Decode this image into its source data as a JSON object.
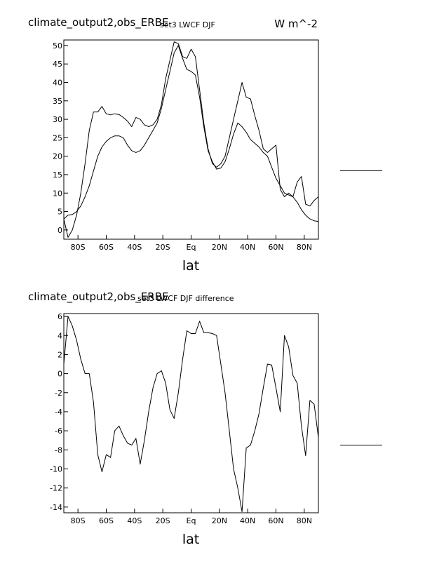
{
  "chart_data": [
    {
      "type": "line",
      "title": "climate_output2,obs_ERBE",
      "subtitle": "set3 LWCF DJF",
      "units": "W m^-2",
      "xlabel": "lat",
      "ylabel": "",
      "xlim": [
        -90,
        90
      ],
      "ylim": [
        -2.5,
        51.5
      ],
      "xticks": [
        -80,
        -60,
        -40,
        -20,
        0,
        20,
        40,
        60,
        80
      ],
      "xtick_labels": [
        "80S",
        "60S",
        "40S",
        "20S",
        "Eq",
        "20N",
        "40N",
        "60N",
        "80N"
      ],
      "yticks": [
        0,
        5,
        10,
        15,
        20,
        25,
        30,
        35,
        40,
        45,
        50
      ],
      "grid": false,
      "legend": "right",
      "series": [
        {
          "x": [
            -90,
            -87,
            -84,
            -81,
            -78,
            -75,
            -72,
            -69,
            -66,
            -63,
            -60,
            -57,
            -54,
            -51,
            -48,
            -45,
            -42,
            -39,
            -36,
            -33,
            -30,
            -27,
            -24,
            -21,
            -18,
            -15,
            -12,
            -9,
            -6,
            -3,
            0,
            3,
            6,
            9,
            12,
            15,
            18,
            21,
            24,
            27,
            30,
            33,
            36,
            39,
            42,
            45,
            48,
            51,
            54,
            57,
            60,
            63,
            66,
            69,
            72,
            75,
            78,
            81,
            84,
            87,
            90
          ],
          "values": [
            3,
            -2,
            0,
            4,
            10,
            18,
            27,
            32,
            32,
            33.5,
            31.5,
            31.2,
            31.5,
            31.3,
            30.5,
            29.5,
            28,
            30.5,
            30,
            28.5,
            28,
            28.5,
            30,
            34,
            41,
            46,
            51,
            50.5,
            47,
            46.5,
            49,
            47,
            38,
            29,
            22,
            18,
            17,
            18,
            20,
            25,
            30,
            35,
            40,
            36,
            35.5,
            31,
            27,
            22,
            21,
            22,
            23,
            11,
            9,
            10,
            9,
            13,
            14.5,
            7,
            6.5,
            8,
            9
          ]
        },
        {
          "x": [
            -90,
            -87,
            -84,
            -81,
            -78,
            -75,
            -72,
            -69,
            -66,
            -63,
            -60,
            -57,
            -54,
            -51,
            -48,
            -45,
            -42,
            -39,
            -36,
            -33,
            -30,
            -27,
            -24,
            -21,
            -18,
            -15,
            -12,
            -9,
            -6,
            -3,
            0,
            3,
            6,
            9,
            12,
            15,
            18,
            21,
            24,
            27,
            30,
            33,
            36,
            39,
            42,
            45,
            48,
            51,
            54,
            57,
            60,
            63,
            66,
            69,
            72,
            75,
            78,
            81,
            84,
            87,
            90
          ],
          "values": [
            3,
            4,
            4.2,
            5,
            6.5,
            9,
            12,
            16,
            20,
            22.5,
            24,
            25,
            25.5,
            25.5,
            25,
            23,
            21.5,
            21,
            21.5,
            23,
            25,
            27,
            29,
            33,
            38,
            43,
            48,
            50,
            46.5,
            43.5,
            43,
            42,
            36,
            28,
            21.5,
            18.5,
            16.5,
            16.8,
            18.5,
            22,
            26,
            29,
            28,
            26.5,
            24.5,
            23.5,
            22.5,
            21,
            20,
            17,
            14,
            12,
            10,
            9.5,
            9,
            7.5,
            5.5,
            4,
            3,
            2.5,
            2.3
          ]
        }
      ]
    },
    {
      "type": "line",
      "title": "climate_output2,obs_ERBE",
      "subtitle": "set3 LWCF DJF difference",
      "xlabel": "lat",
      "ylabel": "",
      "xlim": [
        -90,
        90
      ],
      "ylim": [
        -14.6,
        6.3
      ],
      "xticks": [
        -80,
        -60,
        -40,
        -20,
        0,
        20,
        40,
        60,
        80
      ],
      "xtick_labels": [
        "80S",
        "60S",
        "40S",
        "20S",
        "Eq",
        "20N",
        "40N",
        "60N",
        "80N"
      ],
      "yticks": [
        6,
        4,
        2,
        0,
        -2,
        -4,
        -6,
        -8,
        -10,
        -12,
        -14
      ],
      "grid": false,
      "legend": "right",
      "series": [
        {
          "x": [
            -90,
            -87,
            -84,
            -81,
            -78,
            -75,
            -72,
            -69,
            -66,
            -63,
            -60,
            -57,
            -54,
            -51,
            -48,
            -45,
            -42,
            -39,
            -36,
            -33,
            -30,
            -27,
            -24,
            -21,
            -18,
            -15,
            -12,
            -9,
            -6,
            -3,
            0,
            3,
            6,
            9,
            12,
            15,
            18,
            21,
            24,
            27,
            30,
            33,
            36,
            39,
            42,
            45,
            48,
            51,
            54,
            57,
            60,
            63,
            66,
            69,
            72,
            75,
            78,
            81,
            84,
            87,
            90
          ],
          "values": [
            1,
            6,
            5,
            3.5,
            1.5,
            0,
            0,
            -3,
            -8.5,
            -10.3,
            -8.5,
            -8.8,
            -6,
            -5.5,
            -6.5,
            -7.3,
            -7.5,
            -6.8,
            -9.5,
            -7,
            -4,
            -1.5,
            0,
            0.3,
            -1,
            -3.8,
            -4.7,
            -2,
            1.5,
            4.5,
            4.2,
            4.2,
            5.5,
            4.3,
            4.3,
            4.2,
            4,
            1,
            -2,
            -6,
            -10,
            -12,
            -14.5,
            -7.8,
            -7.5,
            -6,
            -4.2,
            -1.5,
            1,
            0.9,
            -1.5,
            -4,
            4,
            2.8,
            -0.2,
            -1,
            -5.5,
            -8.6,
            -2.8,
            -3.2,
            -6.7
          ]
        }
      ]
    }
  ]
}
